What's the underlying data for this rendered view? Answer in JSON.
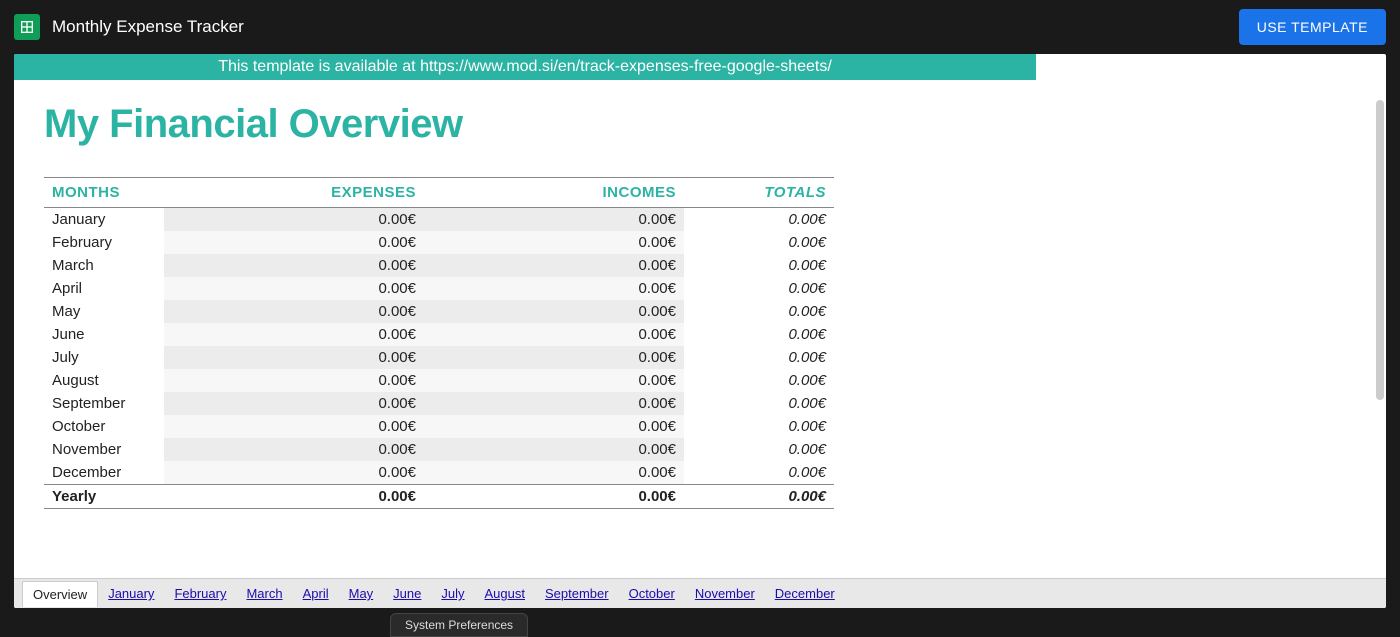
{
  "header": {
    "doc_title": "Monthly Expense Tracker",
    "use_template_label": "USE TEMPLATE"
  },
  "banner_text": "This template is available at https://www.mod.si/en/track-expenses-free-google-sheets/",
  "main_title": "My Financial Overview",
  "colors": {
    "accent": "#2bb3a3",
    "button": "#1a73e8",
    "bg_dark": "#1a1a1a",
    "row_alt_a": "#ececec",
    "row_alt_b": "#f7f7f7",
    "link": "#1a0dab"
  },
  "table": {
    "columns": {
      "months": "MONTHS",
      "expenses": "EXPENSES",
      "incomes": "INCOMES",
      "totals": "TOTALS"
    },
    "rows": [
      {
        "month": "January",
        "expenses": "0.00€",
        "incomes": "0.00€",
        "totals": "0.00€"
      },
      {
        "month": "February",
        "expenses": "0.00€",
        "incomes": "0.00€",
        "totals": "0.00€"
      },
      {
        "month": "March",
        "expenses": "0.00€",
        "incomes": "0.00€",
        "totals": "0.00€"
      },
      {
        "month": "April",
        "expenses": "0.00€",
        "incomes": "0.00€",
        "totals": "0.00€"
      },
      {
        "month": "May",
        "expenses": "0.00€",
        "incomes": "0.00€",
        "totals": "0.00€"
      },
      {
        "month": "June",
        "expenses": "0.00€",
        "incomes": "0.00€",
        "totals": "0.00€"
      },
      {
        "month": "July",
        "expenses": "0.00€",
        "incomes": "0.00€",
        "totals": "0.00€"
      },
      {
        "month": "August",
        "expenses": "0.00€",
        "incomes": "0.00€",
        "totals": "0.00€"
      },
      {
        "month": "September",
        "expenses": "0.00€",
        "incomes": "0.00€",
        "totals": "0.00€"
      },
      {
        "month": "October",
        "expenses": "0.00€",
        "incomes": "0.00€",
        "totals": "0.00€"
      },
      {
        "month": "November",
        "expenses": "0.00€",
        "incomes": "0.00€",
        "totals": "0.00€"
      },
      {
        "month": "December",
        "expenses": "0.00€",
        "incomes": "0.00€",
        "totals": "0.00€"
      }
    ],
    "yearly": {
      "label": "Yearly",
      "expenses": "0.00€",
      "incomes": "0.00€",
      "totals": "0.00€"
    }
  },
  "tabs": [
    {
      "label": "Overview",
      "active": true
    },
    {
      "label": "January",
      "active": false
    },
    {
      "label": "February",
      "active": false
    },
    {
      "label": "March",
      "active": false
    },
    {
      "label": "April",
      "active": false
    },
    {
      "label": "May",
      "active": false
    },
    {
      "label": "June",
      "active": false
    },
    {
      "label": "July",
      "active": false
    },
    {
      "label": "August",
      "active": false
    },
    {
      "label": "September",
      "active": false
    },
    {
      "label": "October",
      "active": false
    },
    {
      "label": "November",
      "active": false
    },
    {
      "label": "December",
      "active": false
    }
  ],
  "footer_stub": "System Preferences"
}
